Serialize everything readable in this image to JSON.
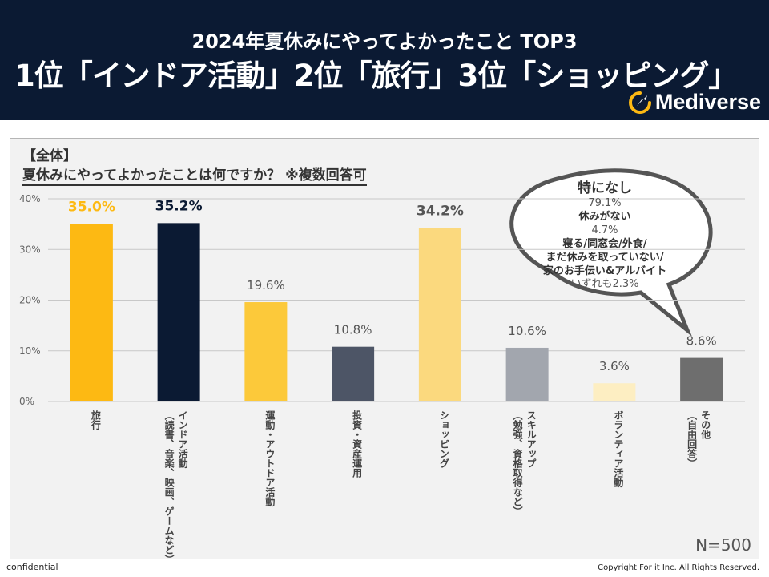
{
  "header": {
    "subtitle": "2024年夏休みにやってよかったこと TOP3",
    "headline": "1位「インドア活動」2位「旅行」3位「ショッピング」",
    "logo_text": "Mediverse",
    "bg_color": "#0b1a33"
  },
  "question": {
    "label": "【全体】",
    "text": "夏休みにやってよかったことは何ですか？ ※複数回答可"
  },
  "sample_size": "N=500",
  "footer": {
    "left": "confidential",
    "right": "Copyright For it Inc. All Rights Reserved."
  },
  "bubble": {
    "title": "特になし",
    "title_value": "79.1%",
    "item2_label": "休みがない",
    "item2_value": "4.7%",
    "item3_line1": "寝る/同窓会/外食/",
    "item3_line2": "まだ休みを取っていない/",
    "item3_line3": "家のお手伝い&アルバイト",
    "item3_value": "いずれも2.3%"
  },
  "chart_data": {
    "type": "bar",
    "title": "夏休みにやってよかったことは何ですか？ ※複数回答可",
    "xlabel": "",
    "ylabel": "",
    "ylim": [
      0,
      40
    ],
    "yticks": [
      "0%",
      "10%",
      "20%",
      "30%",
      "40%"
    ],
    "grid": true,
    "categories": [
      "旅行",
      "インドア活動\n（読書、音楽、映画、ゲームなど）",
      "運動・アウトドア活動",
      "投資・資産運用",
      "ショッピング",
      "スキルアップ\n（勉強、資格取得など）",
      "ボランティア活動",
      "その他\n（自由回答）"
    ],
    "values": [
      35.0,
      35.2,
      19.6,
      10.8,
      34.2,
      10.6,
      3.6,
      8.6
    ],
    "value_labels": [
      "35.0%",
      "35.2%",
      "19.6%",
      "10.8%",
      "34.2%",
      "10.6%",
      "3.6%",
      "8.6%"
    ],
    "bar_colors": [
      "#fdb913",
      "#0b1a33",
      "#fcc93a",
      "#4d5566",
      "#fbd97e",
      "#a2a6ae",
      "#fdeec2",
      "#6e6e6e"
    ],
    "label_colors": [
      "#fdb913",
      "#0b1a33",
      "#555555",
      "#555555",
      "#555555",
      "#555555",
      "#555555",
      "#555555"
    ],
    "label_bold": [
      true,
      true,
      false,
      false,
      true,
      false,
      false,
      false
    ]
  }
}
